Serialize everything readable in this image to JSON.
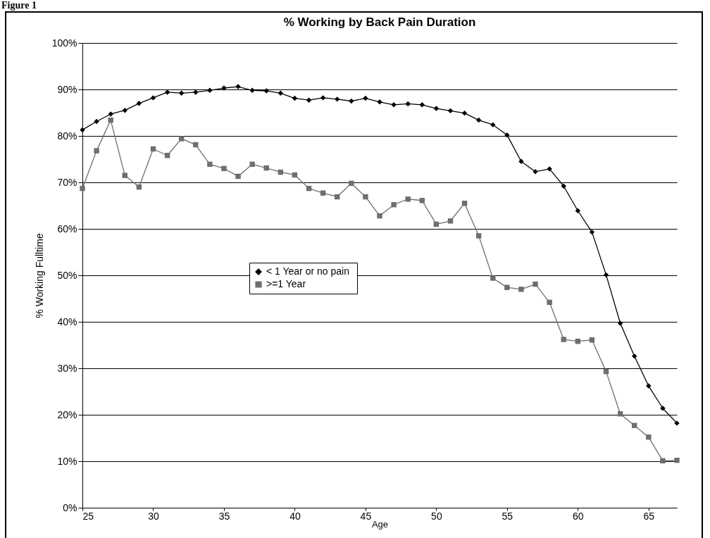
{
  "chart_data": {
    "type": "line",
    "title": "% Working by Back Pain Duration",
    "xlabel": "Age",
    "ylabel": "% Working Fulltime",
    "annotations": [
      "Figure 1"
    ],
    "x": [
      25,
      26,
      27,
      28,
      29,
      30,
      31,
      32,
      33,
      34,
      35,
      36,
      37,
      38,
      39,
      40,
      41,
      42,
      43,
      44,
      45,
      46,
      47,
      48,
      49,
      50,
      51,
      52,
      53,
      54,
      55,
      56,
      57,
      58,
      59,
      60,
      61,
      62,
      63,
      64,
      65,
      66,
      67
    ],
    "series": [
      {
        "name": "<  1 Year or no pain",
        "color": "#000000",
        "marker": "diamond",
        "values": [
          81.3,
          83.1,
          84.7,
          85.5,
          87,
          88.2,
          89.4,
          89.2,
          89.4,
          89.8,
          90.3,
          90.6,
          89.8,
          89.7,
          89.2,
          88.1,
          87.7,
          88.2,
          87.9,
          87.5,
          88.1,
          87.3,
          86.7,
          86.9,
          86.7,
          85.9,
          85.4,
          84.9,
          83.4,
          82.4,
          80.2,
          74.5,
          72.3,
          72.9,
          69.2,
          63.9,
          59.3,
          50.1,
          39.7,
          32.6,
          26.2,
          21.4,
          18.2
        ]
      },
      {
        "name": ">=1 Year",
        "color": "#6e6e6e",
        "marker": "square",
        "values": [
          68.7,
          76.8,
          83.4,
          71.5,
          69,
          77.2,
          75.8,
          79.4,
          78.1,
          73.9,
          73,
          71.3,
          73.9,
          73.1,
          72.2,
          71.6,
          68.7,
          67.7,
          66.9,
          69.8,
          66.9,
          62.8,
          65.2,
          66.4,
          66.1,
          61,
          61.7,
          65.5,
          58.5,
          49.4,
          47.4,
          47,
          48.1,
          44.2,
          36.2,
          35.8,
          36.1,
          29.3,
          20.2,
          17.7,
          15.2,
          10.1,
          10.2
        ]
      }
    ],
    "xlim": [
      25,
      67
    ],
    "xticks": [
      25,
      30,
      35,
      40,
      45,
      50,
      55,
      60,
      65
    ],
    "ylim": [
      0,
      100
    ],
    "yticks": [
      {
        "value": 0,
        "label": "0%"
      },
      {
        "value": 10,
        "label": "10%"
      },
      {
        "value": 20,
        "label": "20%"
      },
      {
        "value": 30,
        "label": "30%"
      },
      {
        "value": 40,
        "label": "40%"
      },
      {
        "value": 50,
        "label": "50%"
      },
      {
        "value": 60,
        "label": "60%"
      },
      {
        "value": 70,
        "label": "70%"
      },
      {
        "value": 80,
        "label": "80%"
      },
      {
        "value": 90,
        "label": "90%"
      },
      {
        "value": 100,
        "label": "100%"
      }
    ],
    "grid": "y",
    "legend": "left",
    "line_style": "solid"
  }
}
